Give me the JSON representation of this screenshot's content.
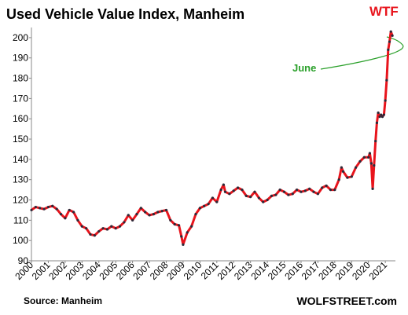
{
  "chart_data": {
    "type": "line",
    "title": "Used Vehicle Value Index, Manheim",
    "annotations": [
      "WTF",
      "June"
    ],
    "source": "Source: Manheim",
    "credit": "WOLFSTREET.com",
    "color": "#e8141c",
    "marker_color": "#2b2b3a",
    "x": [
      2000.0,
      2000.25,
      2000.5,
      2000.75,
      2001.0,
      2001.25,
      2001.5,
      2001.75,
      2002.0,
      2002.25,
      2002.5,
      2002.75,
      2003.0,
      2003.25,
      2003.5,
      2003.75,
      2004.0,
      2004.25,
      2004.5,
      2004.75,
      2005.0,
      2005.25,
      2005.5,
      2005.75,
      2006.0,
      2006.25,
      2006.5,
      2006.75,
      2007.0,
      2007.25,
      2007.5,
      2007.75,
      2008.0,
      2008.25,
      2008.5,
      2008.75,
      2008.9,
      2009.0,
      2009.25,
      2009.5,
      2009.75,
      2010.0,
      2010.25,
      2010.5,
      2010.75,
      2011.0,
      2011.25,
      2011.4,
      2011.5,
      2011.75,
      2012.0,
      2012.25,
      2012.5,
      2012.75,
      2013.0,
      2013.25,
      2013.5,
      2013.75,
      2014.0,
      2014.25,
      2014.5,
      2014.75,
      2015.0,
      2015.25,
      2015.5,
      2015.75,
      2016.0,
      2016.25,
      2016.5,
      2016.75,
      2017.0,
      2017.25,
      2017.5,
      2017.75,
      2018.0,
      2018.25,
      2018.4,
      2018.5,
      2018.75,
      2019.0,
      2019.25,
      2019.5,
      2019.75,
      2020.0,
      2020.08,
      2020.17,
      2020.25,
      2020.33,
      2020.42,
      2020.5,
      2020.58,
      2020.67,
      2020.75,
      2020.83,
      2020.92,
      2021.0,
      2021.08,
      2021.17,
      2021.25,
      2021.33,
      2021.42
    ],
    "values": [
      115,
      116.5,
      116,
      115.5,
      116.5,
      117,
      115.5,
      113,
      111,
      115,
      114,
      110,
      107,
      106,
      103,
      102.5,
      104.5,
      106,
      105.5,
      107,
      106,
      107,
      109,
      112.5,
      110,
      113,
      116,
      114,
      112.5,
      113,
      114,
      114.5,
      115,
      110,
      108,
      107.5,
      102,
      98,
      104,
      107,
      113,
      116,
      117,
      118,
      121,
      119,
      125,
      127.5,
      124,
      123,
      124.5,
      126,
      125,
      122,
      121.5,
      124,
      121,
      119,
      120,
      122,
      122.5,
      125,
      124,
      122.5,
      123,
      125,
      124,
      124.5,
      125.5,
      124,
      123,
      126,
      127,
      125,
      125,
      130,
      136,
      134,
      131,
      131.5,
      136,
      139,
      141,
      141,
      143,
      138,
      125.5,
      137,
      149,
      158,
      163,
      161,
      162,
      161,
      162,
      169,
      179,
      194,
      198,
      203,
      201
    ],
    "xlim": [
      2000,
      2021.6
    ],
    "xticks": [
      2000,
      2001,
      2002,
      2003,
      2004,
      2005,
      2006,
      2007,
      2008,
      2009,
      2010,
      2011,
      2012,
      2013,
      2014,
      2015,
      2016,
      2017,
      2018,
      2019,
      2020,
      2021
    ],
    "ylim": [
      90,
      205
    ],
    "yticks": [
      90,
      100,
      110,
      120,
      130,
      140,
      150,
      160,
      170,
      180,
      190,
      200
    ],
    "grid": false
  }
}
